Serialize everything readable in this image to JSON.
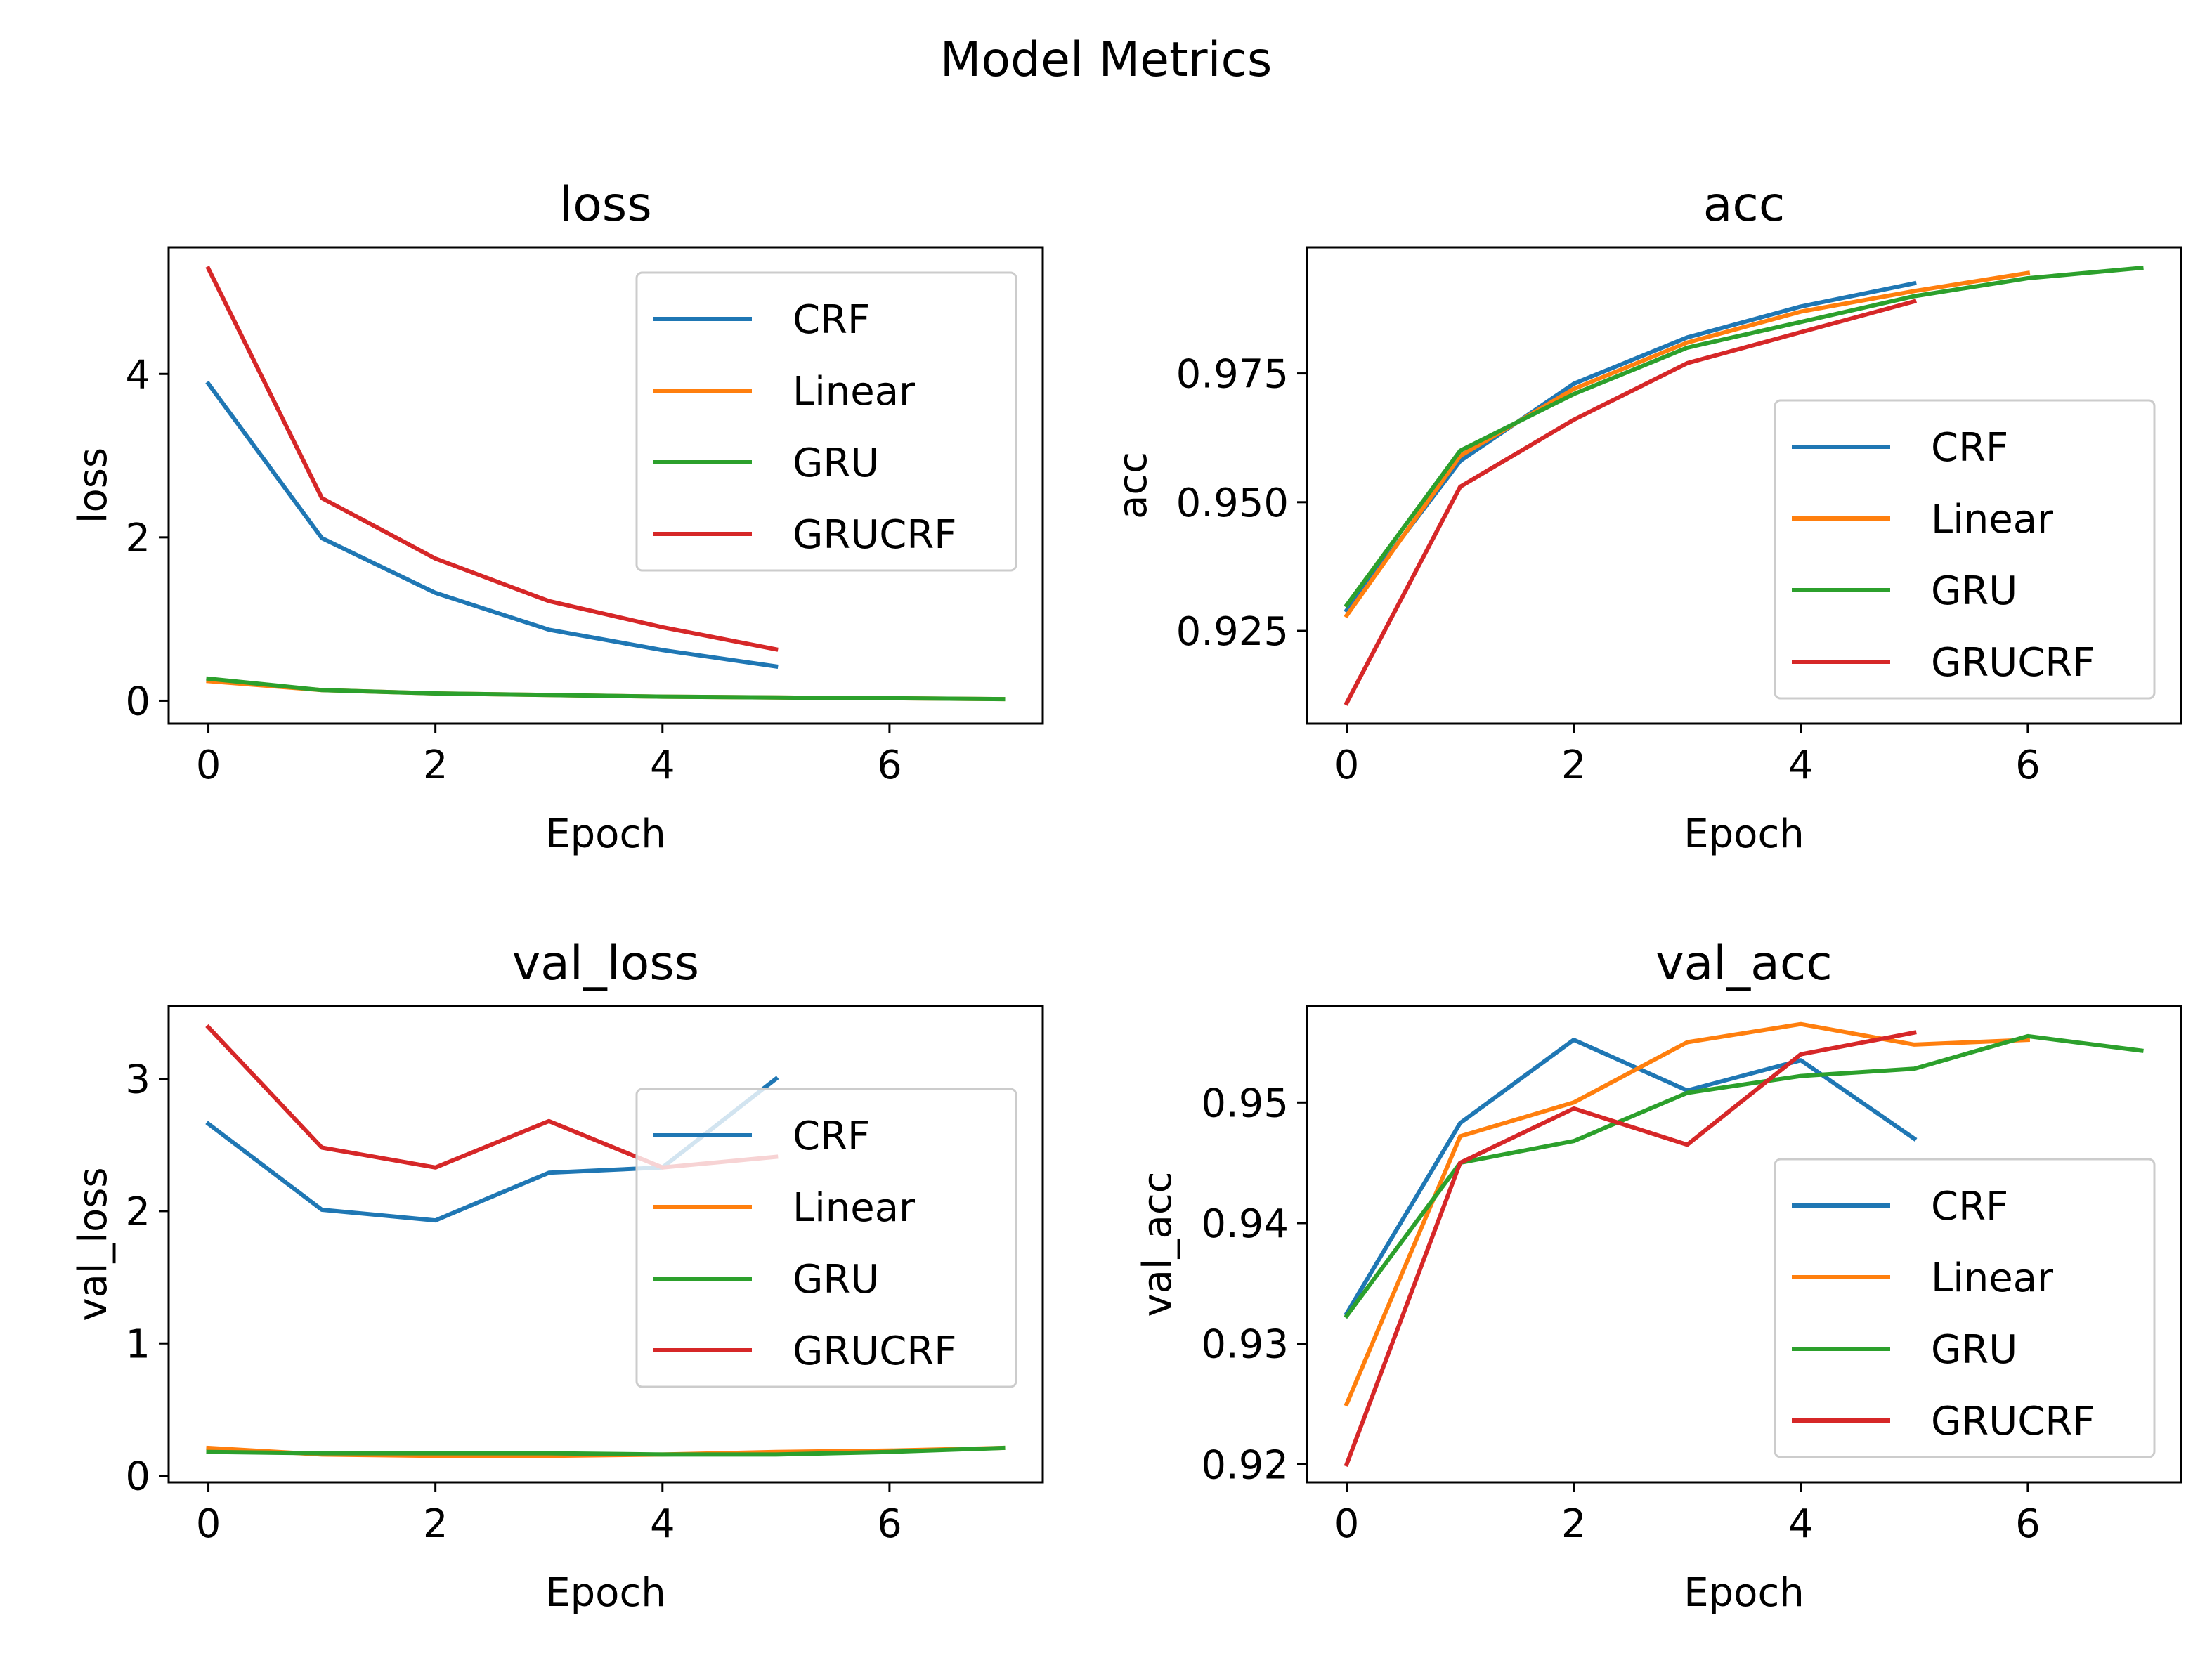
{
  "suptitle": "Model Metrics",
  "colors": {
    "CRF": "#1f77b4",
    "Linear": "#ff7f0e",
    "GRU": "#2ca02c",
    "GRUCRF": "#d62728"
  },
  "chart_data": [
    {
      "type": "line",
      "title": "loss",
      "xlabel": "Epoch",
      "ylabel": "loss",
      "xlim": [
        -0.35,
        7.35
      ],
      "ylim": [
        -0.28,
        5.55
      ],
      "xticks": [
        {
          "v": 0,
          "label": "0"
        },
        {
          "v": 2,
          "label": "2"
        },
        {
          "v": 4,
          "label": "4"
        },
        {
          "v": 6,
          "label": "6"
        }
      ],
      "yticks": [
        {
          "v": 0,
          "label": "0"
        },
        {
          "v": 2,
          "label": "2"
        },
        {
          "v": 4,
          "label": "4"
        }
      ],
      "legend": "top-right",
      "series": [
        {
          "name": "CRF",
          "x": [
            0,
            1,
            2,
            3,
            4,
            5
          ],
          "y": [
            3.88,
            1.99,
            1.32,
            0.87,
            0.62,
            0.42
          ]
        },
        {
          "name": "Linear",
          "x": [
            0,
            1,
            2,
            3,
            4,
            5,
            6,
            7
          ],
          "y": [
            0.24,
            0.13,
            0.09,
            0.07,
            0.05,
            0.04,
            0.03,
            0.02
          ]
        },
        {
          "name": "GRU",
          "x": [
            0,
            1,
            2,
            3,
            4,
            5,
            6,
            7
          ],
          "y": [
            0.27,
            0.13,
            0.09,
            0.07,
            0.05,
            0.04,
            0.03,
            0.02
          ]
        },
        {
          "name": "GRUCRF",
          "x": [
            0,
            1,
            2,
            3,
            4,
            5
          ],
          "y": [
            5.29,
            2.48,
            1.74,
            1.22,
            0.9,
            0.63
          ]
        }
      ]
    },
    {
      "type": "line",
      "title": "acc",
      "xlabel": "Epoch",
      "ylabel": "acc",
      "xlim": [
        -0.35,
        7.35
      ],
      "ylim": [
        0.907,
        0.9995
      ],
      "xticks": [
        {
          "v": 0,
          "label": "0"
        },
        {
          "v": 2,
          "label": "2"
        },
        {
          "v": 4,
          "label": "4"
        },
        {
          "v": 6,
          "label": "6"
        }
      ],
      "yticks": [
        {
          "v": 0.925,
          "label": "0.925"
        },
        {
          "v": 0.95,
          "label": "0.950"
        },
        {
          "v": 0.975,
          "label": "0.975"
        }
      ],
      "legend": "lower-right",
      "series": [
        {
          "name": "CRF",
          "x": [
            0,
            1,
            2,
            3,
            4,
            5
          ],
          "y": [
            0.929,
            0.958,
            0.973,
            0.982,
            0.988,
            0.9925
          ]
        },
        {
          "name": "Linear",
          "x": [
            0,
            1,
            2,
            3,
            4,
            5,
            6
          ],
          "y": [
            0.928,
            0.959,
            0.972,
            0.981,
            0.987,
            0.991,
            0.9945
          ]
        },
        {
          "name": "GRU",
          "x": [
            0,
            1,
            2,
            3,
            4,
            5,
            6,
            7
          ],
          "y": [
            0.93,
            0.96,
            0.971,
            0.98,
            0.985,
            0.99,
            0.9935,
            0.9955
          ]
        },
        {
          "name": "GRUCRF",
          "x": [
            0,
            1,
            2,
            3,
            4,
            5
          ],
          "y": [
            0.911,
            0.953,
            0.966,
            0.977,
            0.983,
            0.989
          ]
        }
      ]
    },
    {
      "type": "line",
      "title": "val_loss",
      "xlabel": "Epoch",
      "ylabel": "val_loss",
      "xlim": [
        -0.35,
        7.35
      ],
      "ylim": [
        -0.05,
        3.55
      ],
      "xticks": [
        {
          "v": 0,
          "label": "0"
        },
        {
          "v": 2,
          "label": "2"
        },
        {
          "v": 4,
          "label": "4"
        },
        {
          "v": 6,
          "label": "6"
        }
      ],
      "yticks": [
        {
          "v": 0,
          "label": "0"
        },
        {
          "v": 1,
          "label": "1"
        },
        {
          "v": 2,
          "label": "2"
        },
        {
          "v": 3,
          "label": "3"
        }
      ],
      "legend": "right",
      "series": [
        {
          "name": "CRF",
          "x": [
            0,
            1,
            2,
            3,
            4,
            5
          ],
          "y": [
            2.66,
            2.01,
            1.93,
            2.29,
            2.33,
            3.0
          ]
        },
        {
          "name": "Linear",
          "x": [
            0,
            1,
            2,
            3,
            4,
            5,
            6,
            7
          ],
          "y": [
            0.21,
            0.16,
            0.15,
            0.15,
            0.16,
            0.18,
            0.19,
            0.21
          ]
        },
        {
          "name": "GRU",
          "x": [
            0,
            1,
            2,
            3,
            4,
            5,
            6,
            7
          ],
          "y": [
            0.18,
            0.17,
            0.17,
            0.17,
            0.16,
            0.16,
            0.18,
            0.21
          ]
        },
        {
          "name": "GRUCRF",
          "x": [
            0,
            1,
            2,
            3,
            4,
            5
          ],
          "y": [
            3.39,
            2.48,
            2.33,
            2.68,
            2.33,
            2.41
          ]
        }
      ]
    },
    {
      "type": "line",
      "title": "val_acc",
      "xlabel": "Epoch",
      "ylabel": "val_acc",
      "xlim": [
        -0.35,
        7.35
      ],
      "ylim": [
        0.9185,
        0.958
      ],
      "xticks": [
        {
          "v": 0,
          "label": "0"
        },
        {
          "v": 2,
          "label": "2"
        },
        {
          "v": 4,
          "label": "4"
        },
        {
          "v": 6,
          "label": "6"
        }
      ],
      "yticks": [
        {
          "v": 0.92,
          "label": "0.92"
        },
        {
          "v": 0.93,
          "label": "0.93"
        },
        {
          "v": 0.94,
          "label": "0.94"
        },
        {
          "v": 0.95,
          "label": "0.95"
        }
      ],
      "legend": "lower-right",
      "series": [
        {
          "name": "CRF",
          "x": [
            0,
            1,
            2,
            3,
            4,
            5
          ],
          "y": [
            0.9325,
            0.9483,
            0.9552,
            0.951,
            0.9535,
            0.947
          ]
        },
        {
          "name": "Linear",
          "x": [
            0,
            1,
            2,
            3,
            4,
            5,
            6
          ],
          "y": [
            0.925,
            0.9472,
            0.95,
            0.955,
            0.9565,
            0.9548,
            0.9552
          ]
        },
        {
          "name": "GRU",
          "x": [
            0,
            1,
            2,
            3,
            4,
            5,
            6,
            7
          ],
          "y": [
            0.9323,
            0.945,
            0.9468,
            0.9508,
            0.9522,
            0.9528,
            0.9555,
            0.9543
          ]
        },
        {
          "name": "GRUCRF",
          "x": [
            0,
            1,
            2,
            3,
            4,
            5
          ],
          "y": [
            0.92,
            0.945,
            0.9495,
            0.9465,
            0.954,
            0.9558
          ]
        }
      ]
    }
  ]
}
